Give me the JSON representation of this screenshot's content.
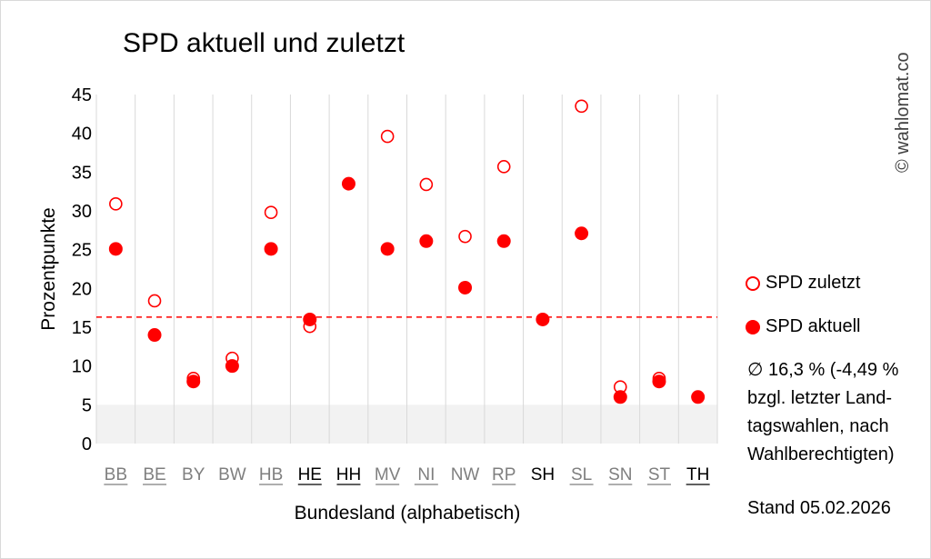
{
  "chart_data": {
    "type": "scatter",
    "title": "SPD aktuell und zuletzt",
    "xlabel": "Bundesland (alphabetisch)",
    "ylabel": "Prozentpunkte",
    "ylim": [
      0,
      45
    ],
    "yticks": [
      0,
      5,
      10,
      15,
      20,
      25,
      30,
      35,
      40,
      45
    ],
    "categories": [
      "BB",
      "BE",
      "BY",
      "BW",
      "HB",
      "HE",
      "HH",
      "MV",
      "NI",
      "NW",
      "RP",
      "SH",
      "SL",
      "SN",
      "ST",
      "TH"
    ],
    "category_styles": [
      "gray-underline",
      "gray-underline",
      "gray",
      "gray",
      "gray-underline",
      "black-underline",
      "black-underline",
      "gray-underline",
      "gray-underline",
      "gray",
      "gray-underline",
      "black",
      "gray-underline",
      "gray-underline",
      "gray-underline",
      "black-underline"
    ],
    "series": [
      {
        "name": "SPD zuletzt",
        "marker": "hollow",
        "values": [
          30.9,
          18.4,
          8.4,
          11.0,
          29.8,
          15.1,
          null,
          39.6,
          33.4,
          26.7,
          35.7,
          null,
          43.5,
          7.3,
          8.4,
          null
        ]
      },
      {
        "name": "SPD aktuell",
        "marker": "filled",
        "values": [
          25.1,
          14.0,
          8.0,
          10.0,
          25.1,
          16.0,
          33.5,
          25.1,
          26.1,
          20.1,
          26.1,
          16.0,
          27.1,
          6.0,
          8.0,
          6.0
        ]
      }
    ],
    "average_line": 16.3,
    "shaded_band": [
      0,
      5
    ],
    "grid": "vertical",
    "legend_placement": "right"
  },
  "colors": {
    "series": "#ff0000",
    "grid": "#d9d9d9",
    "band": "#f2f2f2",
    "label_gray": "#7f7f7f"
  },
  "side": {
    "average_note": "∅ 16,3 % (-4,49 % bzgl. letzter Land-tagswahlen, nach Wahlberechtigten)",
    "stand": "Stand 05.02.2026"
  },
  "watermark": "© wahlomat.co"
}
